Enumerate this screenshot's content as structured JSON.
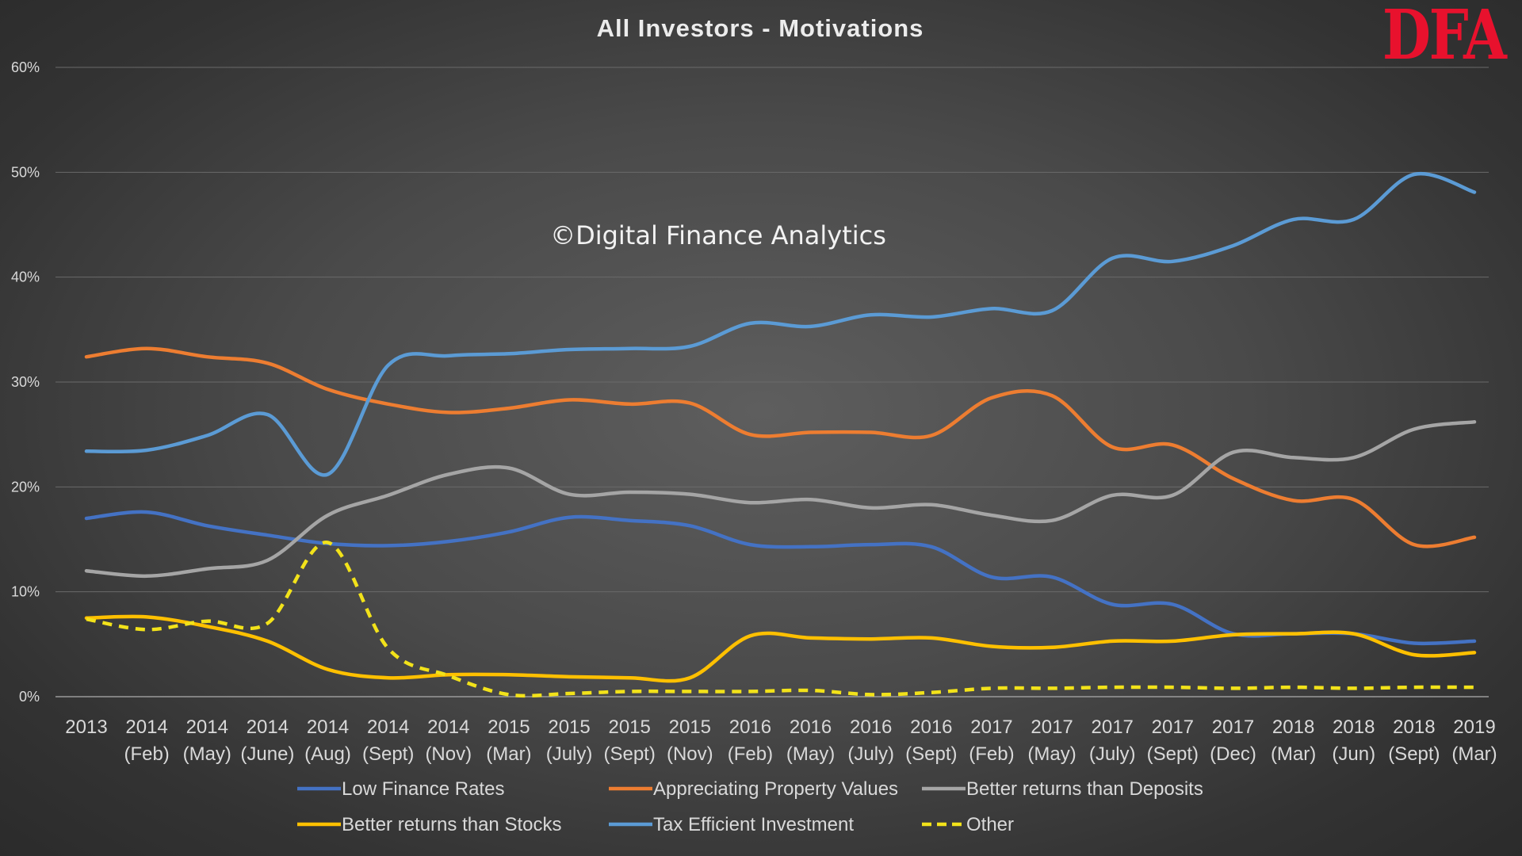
{
  "brand": {
    "logo_text": "DFA",
    "logo_color": "#e8112d"
  },
  "chart_data": {
    "type": "line",
    "title": "All Investors - Motivations",
    "watermark": "©Digital Finance Analytics",
    "xlabel": "",
    "ylabel": "",
    "ylim": [
      0,
      60
    ],
    "y_unit": "%",
    "y_ticks": [
      "0%",
      "10%",
      "20%",
      "30%",
      "40%",
      "50%",
      "60%"
    ],
    "grid": true,
    "legend_position": "bottom",
    "categories": [
      [
        "2013",
        ""
      ],
      [
        "2014",
        "(Feb)"
      ],
      [
        "2014",
        "(May)"
      ],
      [
        "2014",
        "(June)"
      ],
      [
        "2014",
        "(Aug)"
      ],
      [
        "2014",
        "(Sept)"
      ],
      [
        "2014",
        "(Nov)"
      ],
      [
        "2015",
        "(Mar)"
      ],
      [
        "2015",
        "(July)"
      ],
      [
        "2015",
        "(Sept)"
      ],
      [
        "2015",
        "(Nov)"
      ],
      [
        "2016",
        "(Feb)"
      ],
      [
        "2016",
        "(May)"
      ],
      [
        "2016",
        "(July)"
      ],
      [
        "2016",
        "(Sept)"
      ],
      [
        "2017",
        "(Feb)"
      ],
      [
        "2017",
        "(May)"
      ],
      [
        "2017",
        "(July)"
      ],
      [
        "2017",
        "(Sept)"
      ],
      [
        "2017",
        "(Dec)"
      ],
      [
        "2018",
        "(Mar)"
      ],
      [
        "2018",
        "(Jun)"
      ],
      [
        "2018",
        "(Sept)"
      ],
      [
        "2019",
        "(Mar)"
      ]
    ],
    "series": [
      {
        "name": "Low Finance Rates",
        "color": "#4472c4",
        "dash": false,
        "values": [
          17.0,
          17.6,
          16.3,
          15.4,
          14.6,
          14.4,
          14.8,
          15.7,
          17.1,
          16.8,
          16.3,
          14.5,
          14.3,
          14.5,
          14.3,
          11.4,
          11.4,
          8.8,
          8.8,
          6.0,
          6.0,
          6.0,
          5.1,
          5.3
        ]
      },
      {
        "name": "Appreciating Property Values",
        "color": "#ed7d31",
        "dash": false,
        "values": [
          32.4,
          33.2,
          32.4,
          31.8,
          29.3,
          27.9,
          27.1,
          27.5,
          28.3,
          27.9,
          28.0,
          25.0,
          25.2,
          25.2,
          24.9,
          28.5,
          28.7,
          23.8,
          24.0,
          20.8,
          18.7,
          18.8,
          14.5,
          15.2
        ]
      },
      {
        "name": "Better returns than Deposits",
        "color": "#a5a5a5",
        "dash": false,
        "values": [
          12.0,
          11.5,
          12.2,
          13.0,
          17.3,
          19.2,
          21.2,
          21.8,
          19.3,
          19.5,
          19.3,
          18.5,
          18.8,
          18.0,
          18.3,
          17.3,
          16.8,
          19.2,
          19.2,
          23.3,
          22.8,
          22.8,
          25.5,
          26.2
        ]
      },
      {
        "name": "Better returns than Stocks",
        "color": "#ffc000",
        "dash": false,
        "values": [
          7.5,
          7.6,
          6.7,
          5.3,
          2.6,
          1.8,
          2.1,
          2.1,
          1.9,
          1.8,
          1.8,
          5.8,
          5.6,
          5.5,
          5.6,
          4.8,
          4.7,
          5.3,
          5.3,
          5.9,
          6.0,
          6.0,
          4.0,
          4.2
        ]
      },
      {
        "name": "Tax Efficient Investment",
        "color": "#5b9bd5",
        "dash": false,
        "values": [
          23.4,
          23.5,
          24.9,
          26.9,
          21.2,
          31.6,
          32.5,
          32.7,
          33.1,
          33.2,
          33.4,
          35.6,
          35.3,
          36.4,
          36.2,
          37.0,
          36.8,
          41.8,
          41.5,
          43.0,
          45.5,
          45.5,
          49.8,
          48.1
        ]
      },
      {
        "name": "Other",
        "color": "#f2e21a",
        "dash": true,
        "values": [
          7.4,
          6.4,
          7.2,
          7.0,
          14.7,
          4.6,
          2.0,
          0.2,
          0.3,
          0.5,
          0.5,
          0.5,
          0.6,
          0.2,
          0.4,
          0.8,
          0.8,
          0.9,
          0.9,
          0.8,
          0.9,
          0.8,
          0.9,
          0.9
        ]
      }
    ]
  }
}
